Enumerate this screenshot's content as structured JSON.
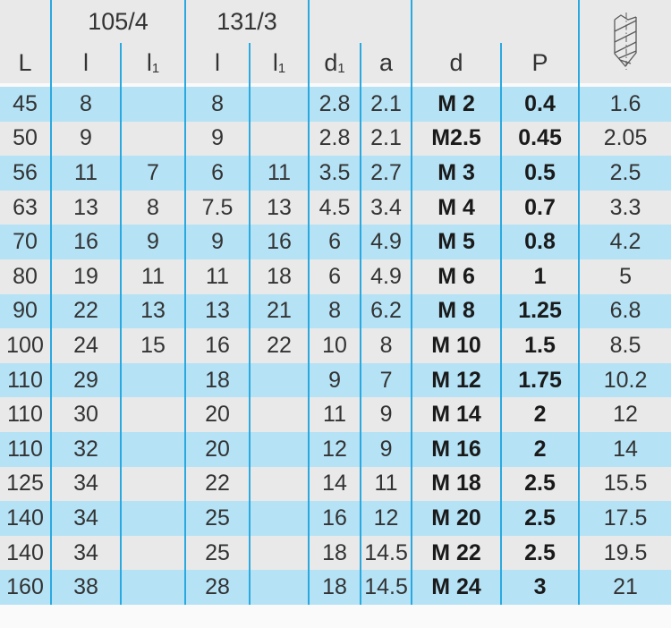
{
  "table": {
    "groups": [
      {
        "label": "105/4"
      },
      {
        "label": "131/3"
      }
    ],
    "columns": [
      {
        "key": "L",
        "label": "L",
        "sub": ""
      },
      {
        "key": "l105",
        "label": "l",
        "sub": ""
      },
      {
        "key": "l1-105",
        "label": "l",
        "sub": "1"
      },
      {
        "key": "l131",
        "label": "l",
        "sub": ""
      },
      {
        "key": "l1-131",
        "label": "l",
        "sub": "1"
      },
      {
        "key": "d1",
        "label": "d",
        "sub": "1"
      },
      {
        "key": "a",
        "label": "a",
        "sub": ""
      },
      {
        "key": "d",
        "label": "d",
        "sub": ""
      },
      {
        "key": "P",
        "label": "P",
        "sub": ""
      },
      {
        "key": "drill",
        "label": "",
        "sub": "",
        "icon": "twist-drill-icon"
      }
    ],
    "rows": [
      [
        "45",
        "8",
        "",
        "8",
        "",
        "2.8",
        "2.1",
        "M 2",
        "0.4",
        "1.6"
      ],
      [
        "50",
        "9",
        "",
        "9",
        "",
        "2.8",
        "2.1",
        "M2.5",
        "0.45",
        "2.05"
      ],
      [
        "56",
        "11",
        "7",
        "6",
        "11",
        "3.5",
        "2.7",
        "M 3",
        "0.5",
        "2.5"
      ],
      [
        "63",
        "13",
        "8",
        "7.5",
        "13",
        "4.5",
        "3.4",
        "M 4",
        "0.7",
        "3.3"
      ],
      [
        "70",
        "16",
        "9",
        "9",
        "16",
        "6",
        "4.9",
        "M 5",
        "0.8",
        "4.2"
      ],
      [
        "80",
        "19",
        "11",
        "11",
        "18",
        "6",
        "4.9",
        "M 6",
        "1",
        "5"
      ],
      [
        "90",
        "22",
        "13",
        "13",
        "21",
        "8",
        "6.2",
        "M 8",
        "1.25",
        "6.8"
      ],
      [
        "100",
        "24",
        "15",
        "16",
        "22",
        "10",
        "8",
        "M 10",
        "1.5",
        "8.5"
      ],
      [
        "110",
        "29",
        "",
        "18",
        "",
        "9",
        "7",
        "M 12",
        "1.75",
        "10.2"
      ],
      [
        "110",
        "30",
        "",
        "20",
        "",
        "11",
        "9",
        "M 14",
        "2",
        "12"
      ],
      [
        "110",
        "32",
        "",
        "20",
        "",
        "12",
        "9",
        "M 16",
        "2",
        "14"
      ],
      [
        "125",
        "34",
        "",
        "22",
        "",
        "14",
        "11",
        "M 18",
        "2.5",
        "15.5"
      ],
      [
        "140",
        "34",
        "",
        "25",
        "",
        "16",
        "12",
        "M 20",
        "2.5",
        "17.5"
      ],
      [
        "140",
        "34",
        "",
        "25",
        "",
        "18",
        "14.5",
        "M 22",
        "2.5",
        "19.5"
      ],
      [
        "160",
        "38",
        "",
        "28",
        "",
        "18",
        "14.5",
        "M 24",
        "3",
        "21"
      ]
    ]
  },
  "colors": {
    "row_blue": "#b5e2f5",
    "row_gray": "#e9e9e9",
    "header_bg": "#e9e9e9",
    "grid_line_blue": "#2aa9e0",
    "page_background": "#fafafa",
    "text": "#333333"
  }
}
